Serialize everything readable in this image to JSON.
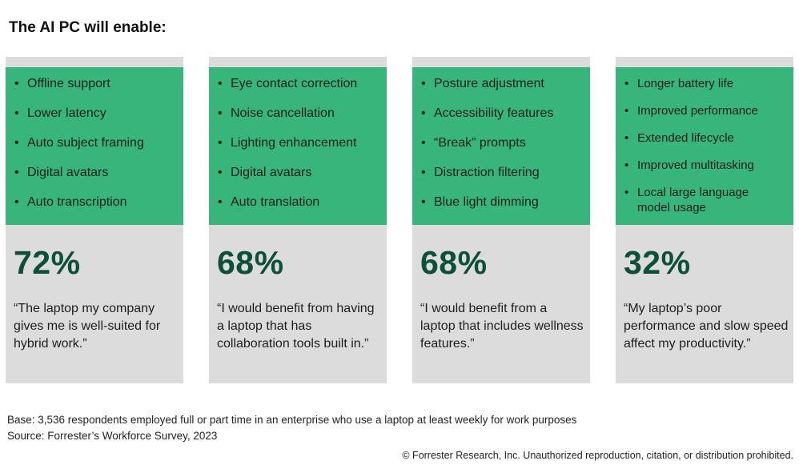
{
  "title": "The AI PC will enable:",
  "cards": [
    {
      "features": [
        "Offline support",
        "Lower latency",
        "Auto subject framing",
        "Digital avatars",
        "Auto transcription"
      ],
      "stat": "72%",
      "quote": "“The laptop my company gives me is well-suited for hybrid work.”"
    },
    {
      "features": [
        "Eye contact correction",
        "Noise cancellation",
        "Lighting enhancement",
        "Digital avatars",
        "Auto translation"
      ],
      "stat": "68%",
      "quote": "“I would benefit from having a laptop that has collaboration tools built in.”"
    },
    {
      "features": [
        "Posture adjustment",
        "Accessibility features",
        "“Break” prompts",
        "Distraction filtering",
        "Blue light dimming"
      ],
      "stat": "68%",
      "quote": "“I would benefit from a laptop that includes wellness features.”"
    },
    {
      "features": [
        "Longer battery life",
        "Improved performance",
        "Extended lifecycle",
        "Improved multitasking",
        "Local large language model usage"
      ],
      "stat": "32%",
      "quote": "“My laptop’s poor performance and slow speed affect my productivity.”"
    }
  ],
  "footer": {
    "base": "Base: 3,536 respondents employed full or part time in an enterprise who use a laptop at least weekly for work purposes",
    "source": "Source: Forrester’s Workforce Survey, 2023",
    "copyright": "© Forrester Research, Inc. Unauthorized reproduction, citation, or distribution prohibited."
  },
  "colors": {
    "panel_green": "#37b57b",
    "stat_dark_green": "#0d4f38",
    "card_gray": "#dcdcdc"
  }
}
